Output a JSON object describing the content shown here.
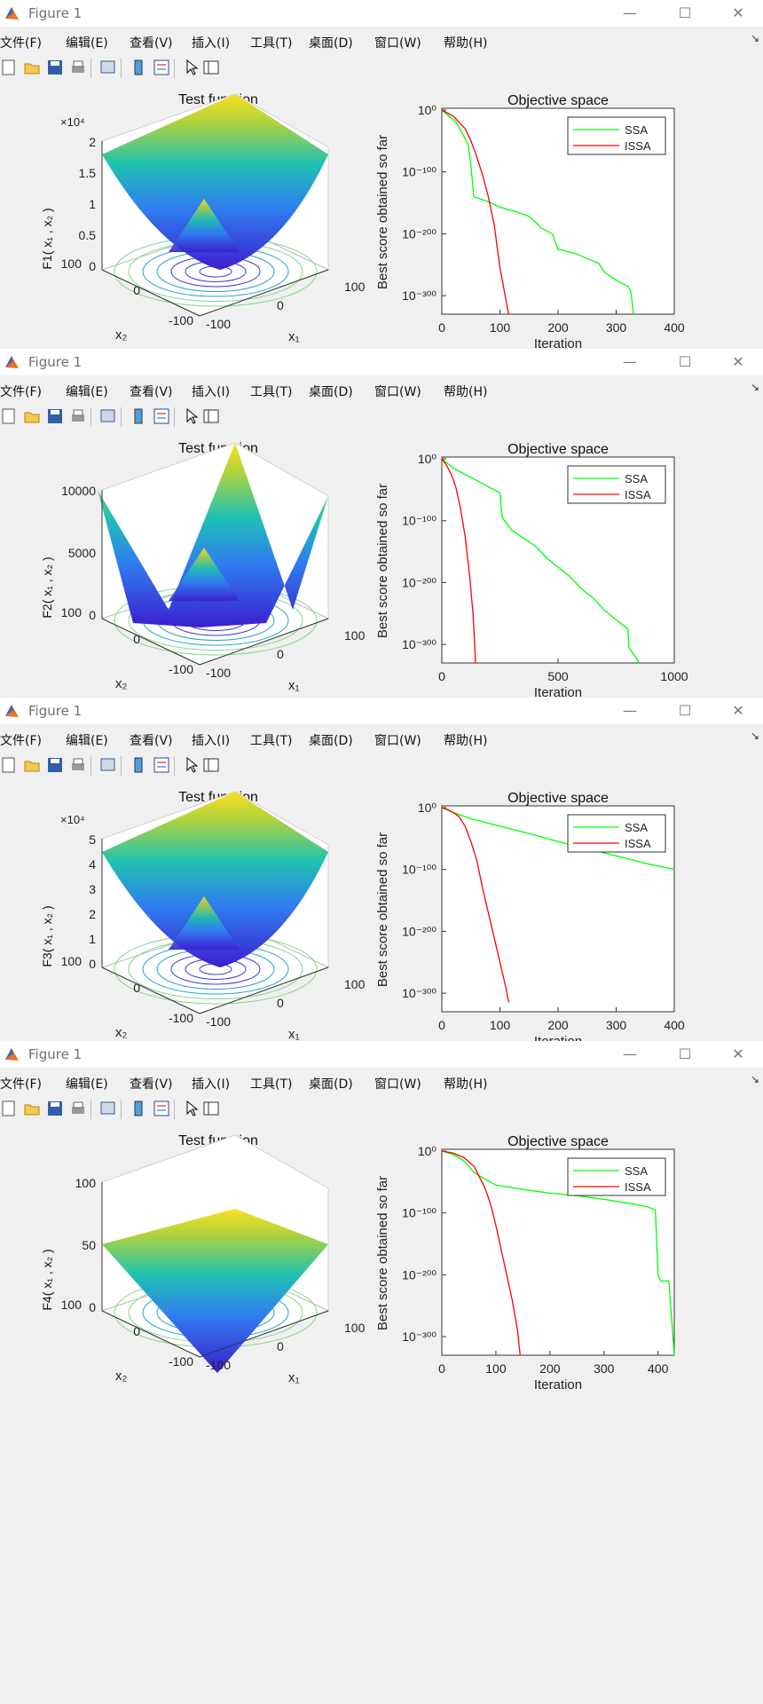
{
  "windows": [
    {
      "title": "Figure 1",
      "menu": [
        "文件(F)",
        "编辑(E)",
        "查看(V)",
        "插入(I)",
        "工具(T)",
        "桌面(D)",
        "窗口(W)",
        "帮助(H)"
      ],
      "left_panel": {
        "title": "Test function",
        "zlabel": "F1( x₁ , x₂ )",
        "z_exponent": "×10⁴",
        "z_ticks": [
          "0",
          "0.5",
          "1",
          "1.5",
          "2"
        ],
        "x1_ticks": [
          "-100",
          "0",
          "100"
        ],
        "x2_ticks": [
          "-100",
          "0",
          "100"
        ],
        "x1_label": "x₁",
        "x2_label": "x₂"
      },
      "chart": {
        "type": "line",
        "title": "Objective space",
        "xlabel": "Iteration",
        "ylabel": "Best score obtained so far",
        "xticks": [
          "0",
          "100",
          "200",
          "300",
          "400"
        ],
        "xlim": [
          0,
          400
        ],
        "ylog_ticks": [
          "10⁰",
          "10⁻¹⁰⁰",
          "10⁻²⁰⁰",
          "10⁻³⁰⁰"
        ]
      }
    },
    {
      "title": "Figure 1",
      "menu": [
        "文件(F)",
        "编辑(E)",
        "查看(V)",
        "插入(I)",
        "工具(T)",
        "桌面(D)",
        "窗口(W)",
        "帮助(H)"
      ],
      "left_panel": {
        "title": "Test function",
        "zlabel": "F2( x₁ , x₂ )",
        "z_exponent": "",
        "z_ticks": [
          "0",
          "5000",
          "10000"
        ],
        "x1_ticks": [
          "-100",
          "0",
          "100"
        ],
        "x2_ticks": [
          "-100",
          "0",
          "100"
        ],
        "x1_label": "x₁",
        "x2_label": "x₂"
      },
      "chart": {
        "type": "line",
        "title": "Objective space",
        "xlabel": "Iteration",
        "ylabel": "Best score obtained so far",
        "xticks": [
          "0",
          "500",
          "1000"
        ],
        "xlim": [
          0,
          1000
        ],
        "ylog_ticks": [
          "10⁰",
          "10⁻¹⁰⁰",
          "10⁻²⁰⁰",
          "10⁻³⁰⁰"
        ]
      }
    },
    {
      "title": "Figure 1",
      "menu": [
        "文件(F)",
        "编辑(E)",
        "查看(V)",
        "插入(I)",
        "工具(T)",
        "桌面(D)",
        "窗口(W)",
        "帮助(H)"
      ],
      "left_panel": {
        "title": "Test function",
        "zlabel": "F3( x₁ , x₂ )",
        "z_exponent": "×10⁴",
        "z_ticks": [
          "0",
          "1",
          "2",
          "3",
          "4",
          "5"
        ],
        "x1_ticks": [
          "-100",
          "0",
          "100"
        ],
        "x2_ticks": [
          "-100",
          "0",
          "100"
        ],
        "x1_label": "x₁",
        "x2_label": "x₂"
      },
      "chart": {
        "type": "line",
        "title": "Objective space",
        "xlabel": "Iteration",
        "ylabel": "Best score obtained so far",
        "xticks": [
          "0",
          "100",
          "200",
          "300",
          "400"
        ],
        "xlim": [
          0,
          400
        ],
        "ylog_ticks": [
          "10⁰",
          "10⁻¹⁰⁰",
          "10⁻²⁰⁰",
          "10⁻³⁰⁰"
        ]
      }
    },
    {
      "title": "Figure 1",
      "menu": [
        "文件(F)",
        "编辑(E)",
        "查看(V)",
        "插入(I)",
        "工具(T)",
        "桌面(D)",
        "窗口(W)",
        "帮助(H)"
      ],
      "left_panel": {
        "title": "Test function",
        "zlabel": "F4( x₁ , x₂ )",
        "z_exponent": "",
        "z_ticks": [
          "0",
          "50",
          "100"
        ],
        "x1_ticks": [
          "-100",
          "0",
          "100"
        ],
        "x2_ticks": [
          "-100",
          "0",
          "100"
        ],
        "x1_label": "x₁",
        "x2_label": "x₂"
      },
      "chart": {
        "type": "line",
        "title": "Objective space",
        "xlabel": "Iteration",
        "ylabel": "Best score obtained so far",
        "xticks": [
          "0",
          "100",
          "200",
          "300",
          "400"
        ],
        "xlim": [
          0,
          430
        ],
        "ylog_ticks": [
          "10⁰",
          "10⁻¹⁰⁰",
          "10⁻²⁰⁰",
          "10⁻³⁰⁰"
        ]
      }
    }
  ],
  "chart_data": [
    {
      "type": "line",
      "title": "Objective space",
      "xlabel": "Iteration",
      "ylabel": "Best score obtained so far",
      "xlim": [
        0,
        400
      ],
      "ylim_log10": [
        -330,
        0
      ],
      "yscale": "log",
      "legend": "top-right",
      "series": [
        {
          "name": "SSA",
          "color": "#00ff00",
          "x": [
            0,
            10,
            25,
            45,
            50,
            55,
            80,
            95,
            110,
            130,
            150,
            160,
            170,
            190,
            200,
            230,
            250,
            270,
            280,
            300,
            320,
            325,
            330
          ],
          "log10y": [
            0,
            -8,
            -20,
            -55,
            -90,
            -140,
            -148,
            -155,
            -160,
            -165,
            -172,
            -180,
            -190,
            -200,
            -225,
            -232,
            -240,
            -248,
            -262,
            -275,
            -285,
            -292,
            -330
          ]
        },
        {
          "name": "ISSA",
          "color": "#ff0000",
          "x": [
            0,
            10,
            20,
            30,
            40,
            50,
            60,
            70,
            80,
            90,
            95,
            100,
            105,
            110,
            115
          ],
          "log10y": [
            0,
            -5,
            -10,
            -20,
            -30,
            -50,
            -75,
            -105,
            -140,
            -185,
            -220,
            -255,
            -280,
            -305,
            -330
          ]
        }
      ]
    },
    {
      "type": "line",
      "title": "Objective space",
      "xlabel": "Iteration",
      "ylabel": "Best score obtained so far",
      "xlim": [
        0,
        1000
      ],
      "ylim_log10": [
        -330,
        0
      ],
      "yscale": "log",
      "legend": "top-right",
      "series": [
        {
          "name": "SSA",
          "color": "#00ff00",
          "x": [
            0,
            50,
            100,
            150,
            200,
            250,
            260,
            300,
            350,
            400,
            450,
            500,
            550,
            600,
            650,
            700,
            750,
            800,
            805,
            850
          ],
          "log10y": [
            0,
            -15,
            -25,
            -35,
            -45,
            -55,
            -95,
            -115,
            -128,
            -140,
            -160,
            -175,
            -190,
            -210,
            -225,
            -245,
            -260,
            -275,
            -305,
            -330
          ]
        },
        {
          "name": "ISSA",
          "color": "#ff0000",
          "x": [
            0,
            20,
            40,
            60,
            80,
            100,
            120,
            135,
            145
          ],
          "log10y": [
            0,
            -10,
            -25,
            -45,
            -80,
            -125,
            -190,
            -255,
            -330
          ]
        }
      ]
    },
    {
      "type": "line",
      "title": "Objective space",
      "xlabel": "Iteration",
      "ylabel": "Best score obtained so far",
      "xlim": [
        0,
        400
      ],
      "ylim_log10": [
        -330,
        0
      ],
      "yscale": "log",
      "legend": "top-right",
      "series": [
        {
          "name": "SSA",
          "color": "#00ff00",
          "x": [
            0,
            20,
            50,
            100,
            150,
            200,
            250,
            300,
            350,
            400
          ],
          "log10y": [
            0,
            -8,
            -18,
            -30,
            -42,
            -55,
            -66,
            -78,
            -90,
            -100
          ]
        },
        {
          "name": "ISSA",
          "color": "#ff0000",
          "x": [
            0,
            10,
            20,
            30,
            40,
            50,
            60,
            70,
            80,
            90,
            100,
            110,
            115
          ],
          "log10y": [
            0,
            -3,
            -8,
            -15,
            -30,
            -55,
            -85,
            -130,
            -170,
            -210,
            -250,
            -290,
            -315
          ]
        }
      ]
    },
    {
      "type": "line",
      "title": "Objective space",
      "xlabel": "Iteration",
      "ylabel": "Best score obtained so far",
      "xlim": [
        0,
        430
      ],
      "ylim_log10": [
        -330,
        0
      ],
      "yscale": "log",
      "legend": "top-right",
      "series": [
        {
          "name": "SSA",
          "color": "#00ff00",
          "x": [
            0,
            20,
            40,
            60,
            80,
            100,
            150,
            200,
            250,
            300,
            350,
            380,
            395,
            400,
            405,
            420,
            430
          ],
          "log10y": [
            0,
            -5,
            -15,
            -35,
            -45,
            -55,
            -62,
            -68,
            -72,
            -78,
            -85,
            -90,
            -95,
            -200,
            -210,
            -210,
            -330
          ]
        },
        {
          "name": "ISSA",
          "color": "#ff0000",
          "x": [
            0,
            20,
            40,
            60,
            80,
            90,
            100,
            110,
            120,
            130,
            140,
            145
          ],
          "log10y": [
            0,
            -3,
            -10,
            -25,
            -60,
            -85,
            -120,
            -160,
            -200,
            -240,
            -290,
            -330
          ]
        }
      ]
    }
  ]
}
